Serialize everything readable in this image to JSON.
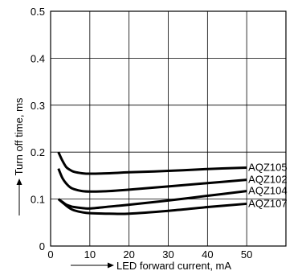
{
  "chart_data": {
    "type": "line",
    "xlabel": "LED forward current, mA",
    "ylabel": "Turn off time, ms",
    "xlim": [
      0,
      60
    ],
    "ylim": [
      0,
      0.5
    ],
    "xticks": [
      "0",
      "10",
      "20",
      "30",
      "40",
      "50"
    ],
    "yticks": [
      "0",
      "0.1",
      "0.2",
      "0.3",
      "0.4",
      "0.5"
    ],
    "xtick_values": [
      0,
      10,
      20,
      30,
      40,
      50
    ],
    "ytick_values": [
      0,
      0.1,
      0.2,
      0.3,
      0.4,
      0.5
    ],
    "grid": true,
    "legend": "inline-right",
    "series": [
      {
        "name": "AQZ105",
        "x": [
          2,
          3,
          4,
          5,
          6,
          8,
          10,
          15,
          20,
          30,
          40,
          50
        ],
        "y": [
          0.2,
          0.182,
          0.168,
          0.162,
          0.158,
          0.155,
          0.154,
          0.155,
          0.157,
          0.16,
          0.164,
          0.167
        ]
      },
      {
        "name": "AQZ102",
        "x": [
          2,
          3,
          4,
          5,
          6,
          8,
          10,
          15,
          20,
          30,
          40,
          50
        ],
        "y": [
          0.165,
          0.145,
          0.133,
          0.125,
          0.121,
          0.117,
          0.116,
          0.117,
          0.12,
          0.127,
          0.134,
          0.141
        ]
      },
      {
        "name": "AQZ104",
        "x": [
          2,
          3,
          4,
          5,
          6,
          8,
          10,
          15,
          20,
          30,
          40,
          50
        ],
        "y": [
          0.1,
          0.094,
          0.088,
          0.085,
          0.083,
          0.081,
          0.08,
          0.084,
          0.088,
          0.097,
          0.107,
          0.117
        ]
      },
      {
        "name": "AQZ107",
        "x": [
          2,
          3,
          4,
          5,
          6,
          8,
          10,
          15,
          20,
          30,
          40,
          50
        ],
        "y": [
          0.1,
          0.093,
          0.086,
          0.08,
          0.076,
          0.072,
          0.07,
          0.069,
          0.069,
          0.075,
          0.083,
          0.09
        ]
      }
    ]
  }
}
